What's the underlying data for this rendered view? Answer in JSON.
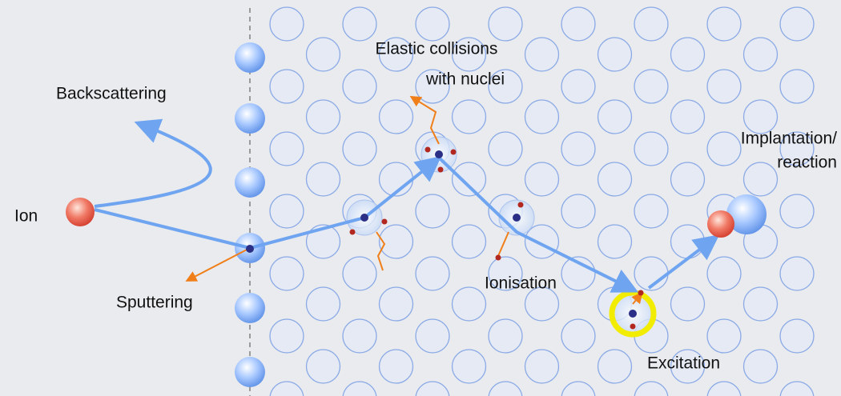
{
  "labels": {
    "elastic_collisions": [
      "Elastic collisions",
      "with nuclei"
    ],
    "backscattering": "Backscattering",
    "implantation": [
      "Implantation/",
      "reaction"
    ],
    "ion": "Ion",
    "ionisation": "Ionisation",
    "sputtering": "Sputtering",
    "excitation": "Excitation"
  }
}
